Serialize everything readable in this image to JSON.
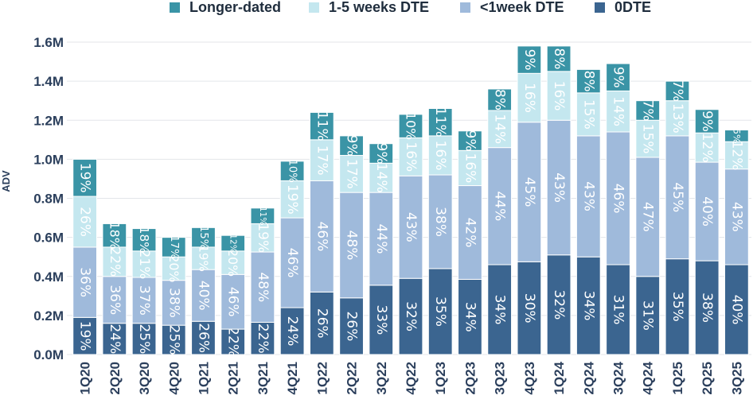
{
  "chart_data": {
    "type": "bar",
    "stacked": true,
    "ylabel": "ADV",
    "xlabel": "",
    "ylim": [
      0,
      1.6
    ],
    "y_ticks": [
      "0.0M",
      "0.2M",
      "0.4M",
      "0.6M",
      "0.8M",
      "1.0M",
      "1.2M",
      "1.4M",
      "1.6M"
    ],
    "y_tick_values": [
      0,
      0.2,
      0.4,
      0.6,
      0.8,
      1.0,
      1.2,
      1.4,
      1.6
    ],
    "grid": true,
    "legend_position": "top",
    "categories": [
      "1Q20",
      "2Q20",
      "3Q20",
      "4Q20",
      "1Q21",
      "2Q21",
      "3Q21",
      "4Q21",
      "1Q22",
      "2Q22",
      "3Q22",
      "4Q22",
      "1Q23",
      "2Q23",
      "3Q23",
      "4Q23",
      "1Q24",
      "2Q24",
      "3Q24",
      "4Q24",
      "1Q25",
      "2Q25",
      "3Q25"
    ],
    "totals": [
      1.0,
      0.67,
      0.64,
      0.6,
      0.66,
      0.61,
      0.75,
      1.0,
      1.24,
      1.12,
      1.08,
      1.22,
      1.26,
      1.14,
      1.36,
      1.58,
      1.59,
      1.46,
      1.49,
      1.3,
      1.4,
      1.26,
      1.15
    ],
    "series": [
      {
        "name": "0DTE",
        "color": "#3b6590",
        "values": [
          0.19,
          0.16,
          0.16,
          0.15,
          0.17,
          0.13,
          0.165,
          0.24,
          0.32,
          0.29,
          0.355,
          0.39,
          0.44,
          0.385,
          0.46,
          0.475,
          0.51,
          0.5,
          0.46,
          0.4,
          0.49,
          0.48,
          0.46
        ],
        "labels": [
          "19%",
          "24%",
          "25%",
          "25%",
          "26%",
          "22%",
          "22%",
          "24%",
          "26%",
          "26%",
          "33%",
          "32%",
          "35%",
          "34%",
          "34%",
          "30%",
          "32%",
          "34%",
          "31%",
          "31%",
          "35%",
          "38%",
          "40%"
        ]
      },
      {
        "name": "<1week DTE",
        "color": "#9fbadb",
        "values": [
          0.36,
          0.24,
          0.235,
          0.23,
          0.265,
          0.28,
          0.36,
          0.46,
          0.57,
          0.54,
          0.475,
          0.525,
          0.48,
          0.48,
          0.6,
          0.715,
          0.69,
          0.62,
          0.68,
          0.61,
          0.63,
          0.505,
          0.49
        ],
        "labels": [
          "36%",
          "36%",
          "37%",
          "38%",
          "40%",
          "46%",
          "48%",
          "46%",
          "46%",
          "48%",
          "44%",
          "43%",
          "38%",
          "42%",
          "44%",
          "45%",
          "43%",
          "43%",
          "46%",
          "47%",
          "45%",
          "40%",
          "43%"
        ]
      },
      {
        "name": "1-5 weeks DTE",
        "color": "#c4e7ef",
        "values": [
          0.26,
          0.15,
          0.135,
          0.12,
          0.115,
          0.12,
          0.145,
          0.19,
          0.21,
          0.19,
          0.15,
          0.195,
          0.2,
          0.18,
          0.19,
          0.25,
          0.25,
          0.22,
          0.21,
          0.19,
          0.18,
          0.15,
          0.14
        ],
        "labels": [
          "26%",
          "22%",
          "21%",
          "20%",
          "19%",
          "20%",
          "19%",
          "19%",
          "17%",
          "17%",
          "14%",
          "16%",
          "16%",
          "16%",
          "14%",
          "16%",
          "16%",
          "15%",
          "14%",
          "15%",
          "13%",
          "12%",
          "12%"
        ]
      },
      {
        "name": "Longer-dated",
        "color": "#3a94a6",
        "values": [
          0.19,
          0.12,
          0.115,
          0.1,
          0.1,
          0.08,
          0.08,
          0.1,
          0.14,
          0.1,
          0.1,
          0.12,
          0.14,
          0.1,
          0.11,
          0.14,
          0.13,
          0.12,
          0.14,
          0.1,
          0.1,
          0.12,
          0.06
        ],
        "labels": [
          "19%",
          "18%",
          "18%",
          "17%",
          "15%",
          "12%",
          "11%",
          "10%",
          "11%",
          "9%",
          "9%",
          "10%",
          "11%",
          "9%",
          "8%",
          "9%",
          "8%",
          "8%",
          "9%",
          "7%",
          "7%",
          "9%",
          "5%"
        ]
      }
    ],
    "legend": [
      "Longer-dated",
      "1-5 weeks DTE",
      "<1week DTE",
      "0DTE"
    ]
  }
}
